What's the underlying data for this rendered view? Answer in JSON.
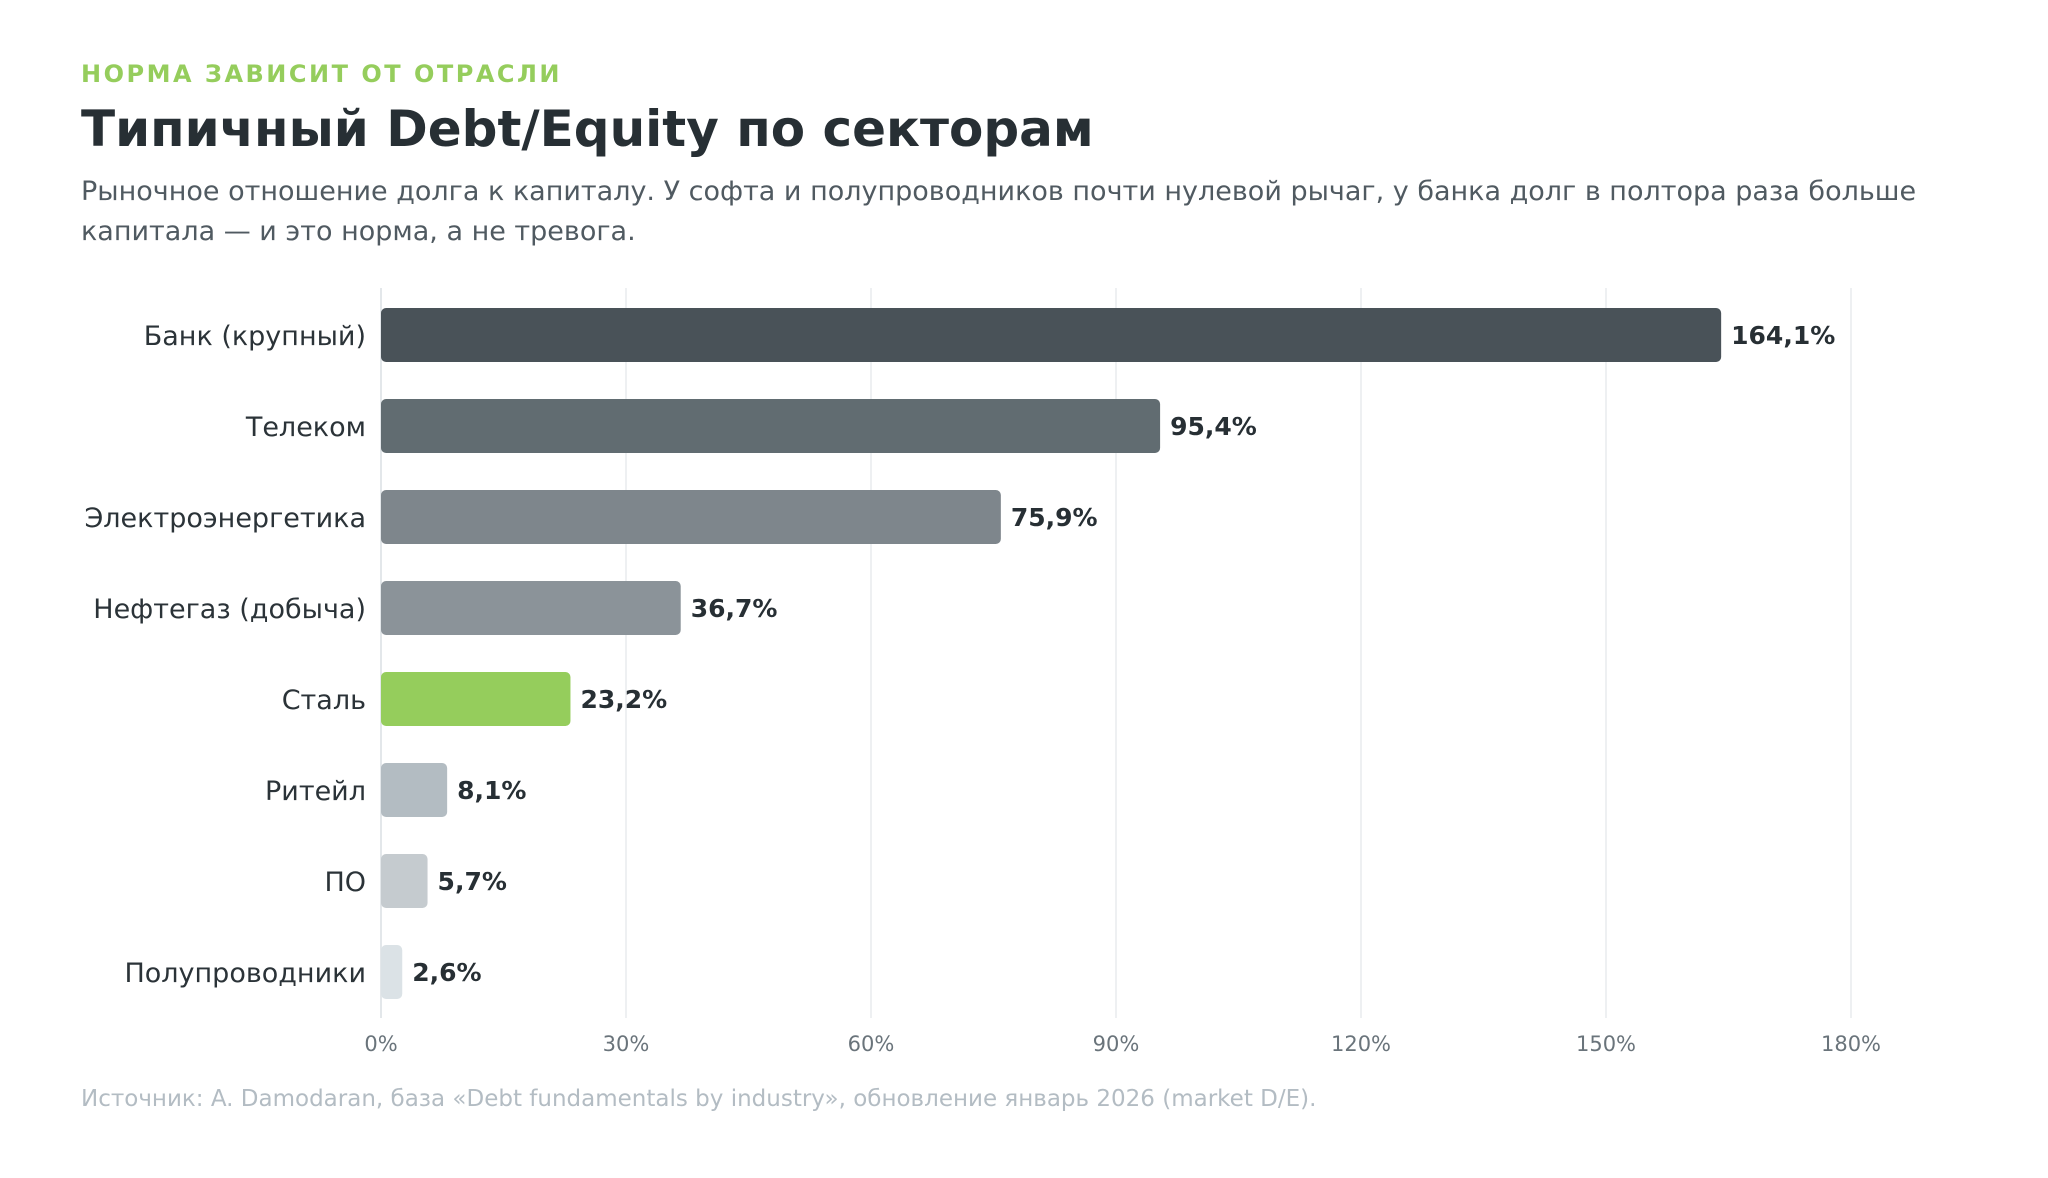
{
  "header": {
    "eyebrow": "НОРМА ЗАВИСИТ ОТ ОТРАСЛИ",
    "title": "Типичный Debt/Equity по секторам",
    "subtitle": "Рыночное отношение долга к капиталу. У софта и полупроводников почти нулевой рычаг, у банка долг в полтора раза больше капитала — и это норма, а не тревога."
  },
  "footer": {
    "source": "Источник: A. Damodaran, база «Debt fundamentals by industry», обновление январь 2026 (market D/E)."
  },
  "chart_data": {
    "type": "bar",
    "orientation": "horizontal",
    "title": "",
    "xlabel": "",
    "ylabel": "",
    "categories": [
      "Банк (крупный)",
      "Телеком",
      "Электроэнергетика",
      "Нефтегаз (добыча)",
      "Сталь",
      "Ритейл",
      "ПО",
      "Полупроводники"
    ],
    "values": [
      164.1,
      95.4,
      75.9,
      36.7,
      23.2,
      8.1,
      5.7,
      2.6
    ],
    "value_labels": [
      "164,1%",
      "95,4%",
      "75,9%",
      "36,7%",
      "23,2%",
      "8,1%",
      "5,7%",
      "2,6%"
    ],
    "bar_colors": [
      "#495258",
      "#616c71",
      "#7e868c",
      "#8b9399",
      "#95cd5c",
      "#b3bcc2",
      "#c5cbcf",
      "#dbe2e6"
    ],
    "xlim": [
      0,
      180
    ],
    "xticks": [
      0,
      30,
      60,
      90,
      120,
      150,
      180
    ],
    "xtick_labels": [
      "0%",
      "30%",
      "60%",
      "90%",
      "120%",
      "150%",
      "180%"
    ],
    "grid": true,
    "legend": "none"
  }
}
